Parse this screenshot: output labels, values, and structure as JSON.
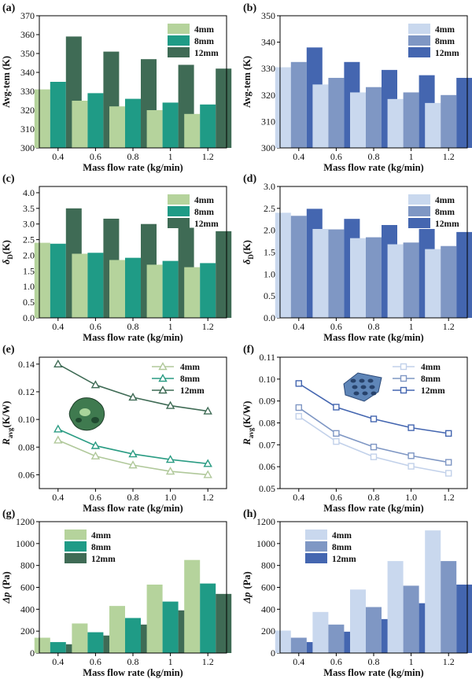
{
  "chart_data": [
    {
      "panel": "(a)",
      "type": "bar",
      "categories": [
        "0.4",
        "0.6",
        "0.8",
        "1",
        "1.2"
      ],
      "series": [
        {
          "name": "4mm",
          "color": "#b5d39c",
          "values": [
            331,
            325,
            322,
            320,
            318
          ]
        },
        {
          "name": "8mm",
          "color": "#1f9b86",
          "values": [
            335,
            329,
            326,
            324,
            323
          ]
        },
        {
          "name": "12mm",
          "color": "#3f6b55",
          "values": [
            359,
            351,
            347,
            344,
            342
          ]
        }
      ],
      "xlabel": "Mass flow rate (kg/min)",
      "ylabel": "Avg-tem (K)",
      "ylim": [
        300,
        370
      ],
      "yticks": [
        "300",
        "310",
        "320",
        "330",
        "340",
        "350",
        "360",
        "370"
      ],
      "legend_position": "top-right"
    },
    {
      "panel": "(b)",
      "type": "bar",
      "categories": [
        "0.4",
        "0.6",
        "0.8",
        "1",
        "1.2"
      ],
      "series": [
        {
          "name": "4mm",
          "color": "#c9d8ee",
          "values": [
            330.5,
            324,
            321,
            318.5,
            317
          ]
        },
        {
          "name": "8mm",
          "color": "#7f97c4",
          "values": [
            332.5,
            326.5,
            323,
            321,
            320
          ]
        },
        {
          "name": "12mm",
          "color": "#4466b0",
          "values": [
            338,
            332.5,
            329.5,
            327.5,
            326.5
          ]
        }
      ],
      "xlabel": "Mass flow rate (kg/min)",
      "ylabel": "Avg-tem (K)",
      "ylim": [
        300,
        350
      ],
      "yticks": [
        "300",
        "310",
        "320",
        "330",
        "340",
        "350"
      ],
      "legend_position": "top-right"
    },
    {
      "panel": "(c)",
      "type": "bar",
      "categories": [
        "0.4",
        "0.6",
        "0.8",
        "1",
        "1.2"
      ],
      "series": [
        {
          "name": "4mm",
          "color": "#b5d39c",
          "values": [
            2.4,
            2.05,
            1.85,
            1.7,
            1.62
          ]
        },
        {
          "name": "8mm",
          "color": "#1f9b86",
          "values": [
            2.37,
            2.08,
            1.92,
            1.82,
            1.75
          ]
        },
        {
          "name": "12mm",
          "color": "#3f6b55",
          "values": [
            3.5,
            3.17,
            3.0,
            2.88,
            2.77
          ]
        }
      ],
      "xlabel": "Mass flow rate (kg/min)",
      "ylabel": "δ",
      "ylabel_sub": "D",
      "ylabel_unit": "(K)",
      "ylim": [
        0,
        4.2
      ],
      "yticks": [
        "0.0",
        "0.5",
        "1.0",
        "1.5",
        "2.0",
        "2.5",
        "3.0",
        "3.5",
        "4.0"
      ],
      "legend_position": "top-right"
    },
    {
      "panel": "(d)",
      "type": "bar",
      "categories": [
        "0.4",
        "0.6",
        "0.8",
        "1",
        "1.2"
      ],
      "series": [
        {
          "name": "4mm",
          "color": "#c9d8ee",
          "values": [
            2.4,
            2.03,
            1.82,
            1.68,
            1.57
          ]
        },
        {
          "name": "8mm",
          "color": "#7f97c4",
          "values": [
            2.33,
            2.02,
            1.84,
            1.72,
            1.64
          ]
        },
        {
          "name": "12mm",
          "color": "#4466b0",
          "values": [
            2.49,
            2.26,
            2.12,
            2.03,
            1.96
          ]
        }
      ],
      "xlabel": "Mass flow rate (kg/min)",
      "ylabel": "δ",
      "ylabel_sub": "D",
      "ylabel_unit": "(K)",
      "ylim": [
        0,
        3.0
      ],
      "yticks": [
        "0.0",
        "0.5",
        "1.0",
        "1.5",
        "2.0",
        "2.5",
        "3.0"
      ],
      "legend_position": "top-right"
    },
    {
      "panel": "(e)",
      "type": "line",
      "marker": "triangle",
      "x": [
        0.4,
        0.6,
        0.8,
        1.0,
        1.2
      ],
      "series": [
        {
          "name": "4mm",
          "color": "#b0c89a",
          "values": [
            0.085,
            0.0735,
            0.067,
            0.0625,
            0.06
          ]
        },
        {
          "name": "8mm",
          "color": "#2a9c83",
          "values": [
            0.093,
            0.081,
            0.075,
            0.071,
            0.068
          ]
        },
        {
          "name": "12mm",
          "color": "#3f6b55",
          "values": [
            0.14,
            0.125,
            0.116,
            0.11,
            0.106
          ]
        }
      ],
      "xlabel": "Mass flow rate (kg/min)",
      "ylabel": "R",
      "ylabel_sub": "avg",
      "ylabel_unit": "(K/W)",
      "xlim": [
        0.3,
        1.3
      ],
      "ylim": [
        0.05,
        0.145
      ],
      "xticks": [
        "0.4",
        "0.6",
        "0.8",
        "1.0",
        "1.2"
      ],
      "yticks": [
        "0.06",
        "0.08",
        "0.10",
        "0.12",
        "0.14"
      ],
      "legend_position": "top-right"
    },
    {
      "panel": "(f)",
      "type": "line",
      "marker": "square",
      "x": [
        0.4,
        0.6,
        0.8,
        1.0,
        1.2
      ],
      "series": [
        {
          "name": "4mm",
          "color": "#c2d1ea",
          "values": [
            0.083,
            0.0715,
            0.0645,
            0.0602,
            0.057
          ]
        },
        {
          "name": "8mm",
          "color": "#7f97c4",
          "values": [
            0.087,
            0.0752,
            0.069,
            0.065,
            0.062
          ]
        },
        {
          "name": "12mm",
          "color": "#4466b0",
          "values": [
            0.098,
            0.0872,
            0.0818,
            0.0778,
            0.0752
          ]
        }
      ],
      "xlabel": "Mass flow rate (kg/min)",
      "ylabel": "R",
      "ylabel_sub": "avg",
      "ylabel_unit": "(K/W)",
      "xlim": [
        0.3,
        1.3
      ],
      "ylim": [
        0.05,
        0.11
      ],
      "xticks": [
        "0.4",
        "0.6",
        "0.8",
        "1.0",
        "1.2"
      ],
      "yticks": [
        "0.05",
        "0.06",
        "0.07",
        "0.08",
        "0.09",
        "0.10",
        "0.11"
      ],
      "legend_position": "top-right"
    },
    {
      "panel": "(g)",
      "type": "bar",
      "categories": [
        "0.4",
        "0.6",
        "0.8",
        "1",
        "1.2"
      ],
      "series": [
        {
          "name": "4mm",
          "color": "#b5d39c",
          "values": [
            140,
            270,
            430,
            625,
            850
          ]
        },
        {
          "name": "8mm",
          "color": "#1f9b86",
          "values": [
            100,
            190,
            320,
            470,
            635
          ]
        },
        {
          "name": "12mm",
          "color": "#3f6b55",
          "values": [
            80,
            160,
            260,
            390,
            540
          ]
        }
      ],
      "xlabel": "Mass flow rate (kg/min)",
      "ylabel": "Δp",
      "ylabel_unit": "(Pa)",
      "ylim": [
        0,
        1200
      ],
      "yticks": [
        "0",
        "200",
        "400",
        "600",
        "800",
        "1000",
        "1200"
      ],
      "legend_position": "top-left"
    },
    {
      "panel": "(h)",
      "type": "bar",
      "categories": [
        "0.4",
        "0.6",
        "0.8",
        "1",
        "1.2"
      ],
      "series": [
        {
          "name": "4mm",
          "color": "#c9d8ee",
          "values": [
            205,
            375,
            580,
            840,
            1120
          ]
        },
        {
          "name": "8mm",
          "color": "#7f97c4",
          "values": [
            140,
            260,
            420,
            615,
            840
          ]
        },
        {
          "name": "12mm",
          "color": "#4466b0",
          "values": [
            100,
            195,
            310,
            455,
            625
          ]
        }
      ],
      "xlabel": "Mass flow rate (kg/min)",
      "ylabel": "Δp",
      "ylabel_unit": "(Pa)",
      "ylim": [
        0,
        1200
      ],
      "yticks": [
        "0",
        "200",
        "400",
        "600",
        "800",
        "1000",
        "1200"
      ],
      "legend_position": "top-left"
    }
  ]
}
